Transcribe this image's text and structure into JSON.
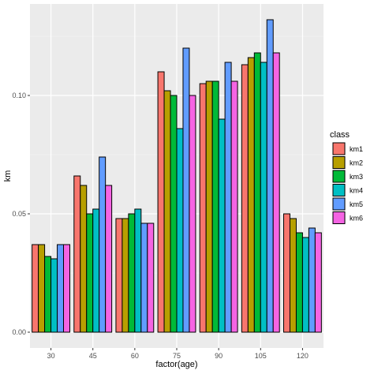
{
  "chart_data": {
    "type": "bar",
    "xlabel": "factor(age)",
    "ylabel": "km",
    "categories": [
      "30",
      "45",
      "60",
      "75",
      "90",
      "105",
      "120"
    ],
    "ylim": [
      0,
      0.135
    ],
    "yticks": [
      0.0,
      0.05,
      0.1
    ],
    "ytick_labels": [
      "0.00",
      "0.05",
      "0.10"
    ],
    "grid": true,
    "legend": {
      "title": "class",
      "placement": "right"
    },
    "series": [
      {
        "name": "km1",
        "color": "#F8766D",
        "values": [
          0.037,
          0.066,
          0.048,
          0.11,
          0.105,
          0.113,
          0.05
        ]
      },
      {
        "name": "km2",
        "color": "#B79F00",
        "values": [
          0.037,
          0.062,
          0.048,
          0.102,
          0.106,
          0.116,
          0.048
        ]
      },
      {
        "name": "km3",
        "color": "#00BA38",
        "values": [
          0.032,
          0.05,
          0.05,
          0.1,
          0.106,
          0.118,
          0.042
        ]
      },
      {
        "name": "km4",
        "color": "#00BFC4",
        "values": [
          0.031,
          0.052,
          0.052,
          0.086,
          0.09,
          0.114,
          0.04
        ]
      },
      {
        "name": "km5",
        "color": "#619CFF",
        "values": [
          0.037,
          0.074,
          0.046,
          0.12,
          0.114,
          0.132,
          0.044
        ]
      },
      {
        "name": "km6",
        "color": "#F564E3",
        "values": [
          0.037,
          0.062,
          0.046,
          0.1,
          0.106,
          0.118,
          0.042
        ]
      }
    ]
  }
}
